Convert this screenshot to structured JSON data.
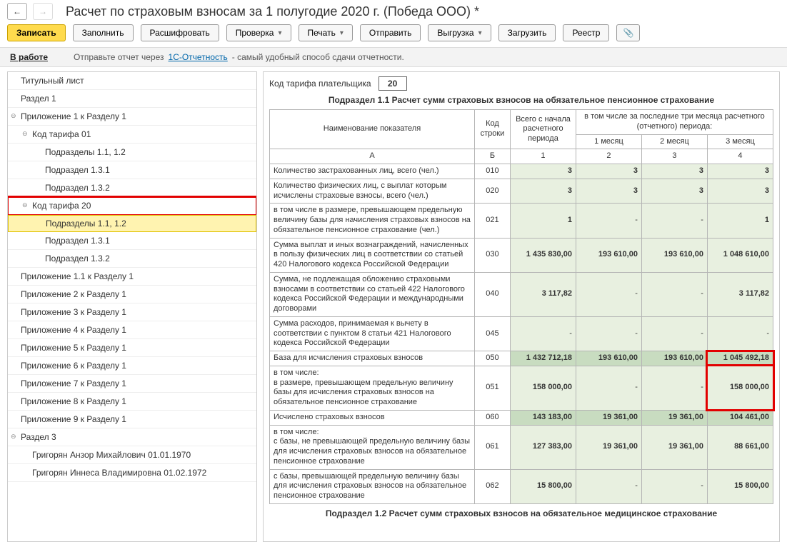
{
  "header": {
    "title": "Расчет по страховым взносам за 1 полугодие 2020 г. (Победа ООО) *"
  },
  "nav": {
    "back": "←",
    "fwd": "→"
  },
  "toolbar": {
    "save": "Записать",
    "fill": "Заполнить",
    "decode": "Расшифровать",
    "check": "Проверка",
    "print": "Печать",
    "send": "Отправить",
    "export": "Выгрузка",
    "load": "Загрузить",
    "registry": "Реестр"
  },
  "info": {
    "status": "В работе",
    "text1": "Отправьте отчет через ",
    "link": "1С-Отчетность",
    "text2": " - самый удобный способ сдачи отчетности."
  },
  "tree": [
    {
      "label": "Титульный лист",
      "lvl": 1
    },
    {
      "label": "Раздел 1",
      "lvl": 1
    },
    {
      "label": "Приложение 1 к Разделу 1",
      "lvl": 1,
      "exp": "⊖"
    },
    {
      "label": "Код тарифа 01",
      "lvl": 2,
      "exp": "⊖"
    },
    {
      "label": "Подразделы 1.1, 1.2",
      "lvl": 3
    },
    {
      "label": "Подраздел 1.3.1",
      "lvl": 3
    },
    {
      "label": "Подраздел 1.3.2",
      "lvl": 3
    },
    {
      "label": "Код тарифа 20",
      "lvl": 2,
      "exp": "⊖",
      "hlRed": true
    },
    {
      "label": "Подразделы 1.1, 1.2",
      "lvl": 3,
      "selected": true
    },
    {
      "label": "Подраздел 1.3.1",
      "lvl": 3
    },
    {
      "label": "Подраздел 1.3.2",
      "lvl": 3
    },
    {
      "label": "Приложение 1.1 к Разделу 1",
      "lvl": 1
    },
    {
      "label": "Приложение 2 к Разделу 1",
      "lvl": 1
    },
    {
      "label": "Приложение 3 к Разделу 1",
      "lvl": 1
    },
    {
      "label": "Приложение 4 к Разделу 1",
      "lvl": 1
    },
    {
      "label": "Приложение 5 к Разделу 1",
      "lvl": 1
    },
    {
      "label": "Приложение 6 к Разделу 1",
      "lvl": 1
    },
    {
      "label": "Приложение 7 к Разделу 1",
      "lvl": 1
    },
    {
      "label": "Приложение 8 к Разделу 1",
      "lvl": 1
    },
    {
      "label": "Приложение 9 к Разделу 1",
      "lvl": 1
    },
    {
      "label": "Раздел 3",
      "lvl": 1,
      "exp": "⊖"
    },
    {
      "label": "Григорян Анзор Михайлович 01.01.1970",
      "lvl": 2
    },
    {
      "label": "Григорян Иннеса Владимировна 01.02.1972",
      "lvl": 2
    }
  ],
  "panel": {
    "tariff_label": "Код тарифа плательщика",
    "tariff_value": "20",
    "section_title": "Подраздел 1.1 Расчет сумм страховых взносов на обязательное пенсионное страхование",
    "footer_title": "Подраздел 1.2 Расчет сумм страховых взносов на обязательное медицинское страхование",
    "head": {
      "name": "Наименование показателя",
      "code": "Код строки",
      "total": "Всего с начала расчетного периода",
      "group": "в том числе за последние три месяца расчетного (отчетного) периода:",
      "m1": "1 месяц",
      "m2": "2 месяц",
      "m3": "3 месяц",
      "a": "А",
      "b": "Б",
      "c1": "1",
      "c2": "2",
      "c3": "3",
      "c4": "4"
    },
    "rows": [
      {
        "name": "Количество застрахованных лиц, всего (чел.)",
        "code": "010",
        "total": "3",
        "m1": "3",
        "m2": "3",
        "m3": "3"
      },
      {
        "name": "Количество физических лиц, с выплат которым исчислены страховые взносы, всего (чел.)",
        "code": "020",
        "total": "3",
        "m1": "3",
        "m2": "3",
        "m3": "3"
      },
      {
        "name": "в том числе в размере, превышающем предельную величину базы для начисления страховых взносов на обязательное пенсионное страхование (чел.)",
        "code": "021",
        "total": "1",
        "m1": "",
        "m2": "",
        "m3": "1"
      },
      {
        "name": "Сумма выплат и иных вознаграждений, начисленных в пользу физических лиц в соответствии со статьей 420 Налогового кодекса Российской Федерации",
        "code": "030",
        "total": "1 435 830,00",
        "m1": "193 610,00",
        "m2": "193 610,00",
        "m3": "1 048 610,00"
      },
      {
        "name": "Сумма, не подлежащая обложению страховыми взносами в соответствии со статьей 422 Налогового кодекса Российской Федерации и международными договорами",
        "code": "040",
        "total": "3 117,82",
        "m1": "",
        "m2": "",
        "m3": "3 117,82"
      },
      {
        "name": "Сумма расходов, принимаемая к вычету в соответствии с пунктом 8 статьи 421 Налогового кодекса Российской Федерации",
        "code": "045",
        "total": "",
        "m1": "",
        "m2": "",
        "m3": ""
      },
      {
        "name": "База для исчисления страховых взносов",
        "code": "050",
        "dark": true,
        "total": "1 432 712,18",
        "m1": "193 610,00",
        "m2": "193 610,00",
        "m3": "1 045 492,18",
        "hlM3": true
      },
      {
        "name": "в том числе:\nв размере, превышающем предельную величину базы для исчисления страховых взносов на обязательное пенсионное страхование",
        "code": "051",
        "total": "158 000,00",
        "m1": "",
        "m2": "",
        "m3": "158 000,00",
        "hlM3": true
      },
      {
        "name": "Исчислено страховых взносов",
        "code": "060",
        "dark": true,
        "total": "143 183,00",
        "m1": "19 361,00",
        "m2": "19 361,00",
        "m3": "104 461,00"
      },
      {
        "name": "в том числе:\nс базы, не превышающей предельную величину базы для исчисления страховых взносов на обязательное пенсионное страхование",
        "code": "061",
        "total": "127 383,00",
        "m1": "19 361,00",
        "m2": "19 361,00",
        "m3": "88 661,00"
      },
      {
        "name": "с базы, превышающей предельную величину базы для исчисления страховых взносов на обязательное пенсионное страхование",
        "code": "062",
        "total": "15 800,00",
        "m1": "",
        "m2": "",
        "m3": "15 800,00"
      }
    ]
  }
}
